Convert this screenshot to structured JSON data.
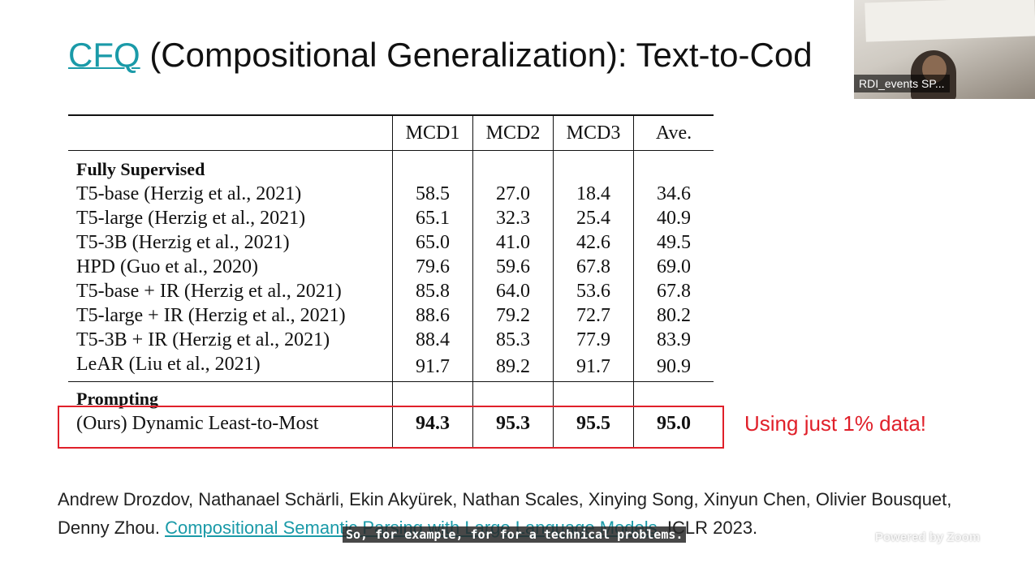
{
  "slide": {
    "title_link": "CFQ",
    "title_rest": " (Compositional Generalization): Text-to-Cod",
    "table": {
      "headers": [
        "",
        "MCD1",
        "MCD2",
        "MCD3",
        "Ave."
      ],
      "sections": [
        {
          "heading": "Fully Supervised",
          "rows": [
            {
              "method": "T5-base (Herzig et al., 2021)",
              "values": [
                "58.5",
                "27.0",
                "18.4",
                "34.6"
              ]
            },
            {
              "method": "T5-large (Herzig et al., 2021)",
              "values": [
                "65.1",
                "32.3",
                "25.4",
                "40.9"
              ]
            },
            {
              "method": "T5-3B (Herzig et al., 2021)",
              "values": [
                "65.0",
                "41.0",
                "42.6",
                "49.5"
              ]
            },
            {
              "method": "HPD (Guo et al., 2020)",
              "values": [
                "79.6",
                "59.6",
                "67.8",
                "69.0"
              ]
            },
            {
              "method": "T5-base + IR (Herzig et al., 2021)",
              "values": [
                "85.8",
                "64.0",
                "53.6",
                "67.8"
              ]
            },
            {
              "method": "T5-large + IR (Herzig et al., 2021)",
              "values": [
                "88.6",
                "79.2",
                "72.7",
                "80.2"
              ]
            },
            {
              "method": "T5-3B + IR (Herzig et al., 2021)",
              "values": [
                "88.4",
                "85.3",
                "77.9",
                "83.9"
              ]
            },
            {
              "method": "LeAR (Liu et al., 2021)",
              "values": [
                "91.7",
                "89.2",
                "91.7",
                "90.9"
              ]
            }
          ]
        },
        {
          "heading": "Prompting",
          "rows": [
            {
              "method": "(Ours) Dynamic Least-to-Most",
              "values": [
                "94.3",
                "95.3",
                "95.5",
                "95.0"
              ]
            }
          ]
        }
      ]
    },
    "note": "Using just 1% data!",
    "citation_authors": "Andrew Drozdov, Nathanael Schärli, Ekin Akyürek, Nathan Scales, Xinying Song, Xinyun Chen, Olivier Bousquet, Denny Zhou. ",
    "citation_link": "Compositional Semantic Parsing with Large Language Models",
    "citation_venue": ". ICLR 2023."
  },
  "video": {
    "participant_name": "RDI_events SP..."
  },
  "caption": "So, for example, for for a technical problems.",
  "watermark": "Powered by Zoom",
  "colors": {
    "link": "#1a9aa8",
    "highlight": "#e0202a",
    "text": "#111111"
  },
  "icons": [
    "video-thumbnail"
  ]
}
